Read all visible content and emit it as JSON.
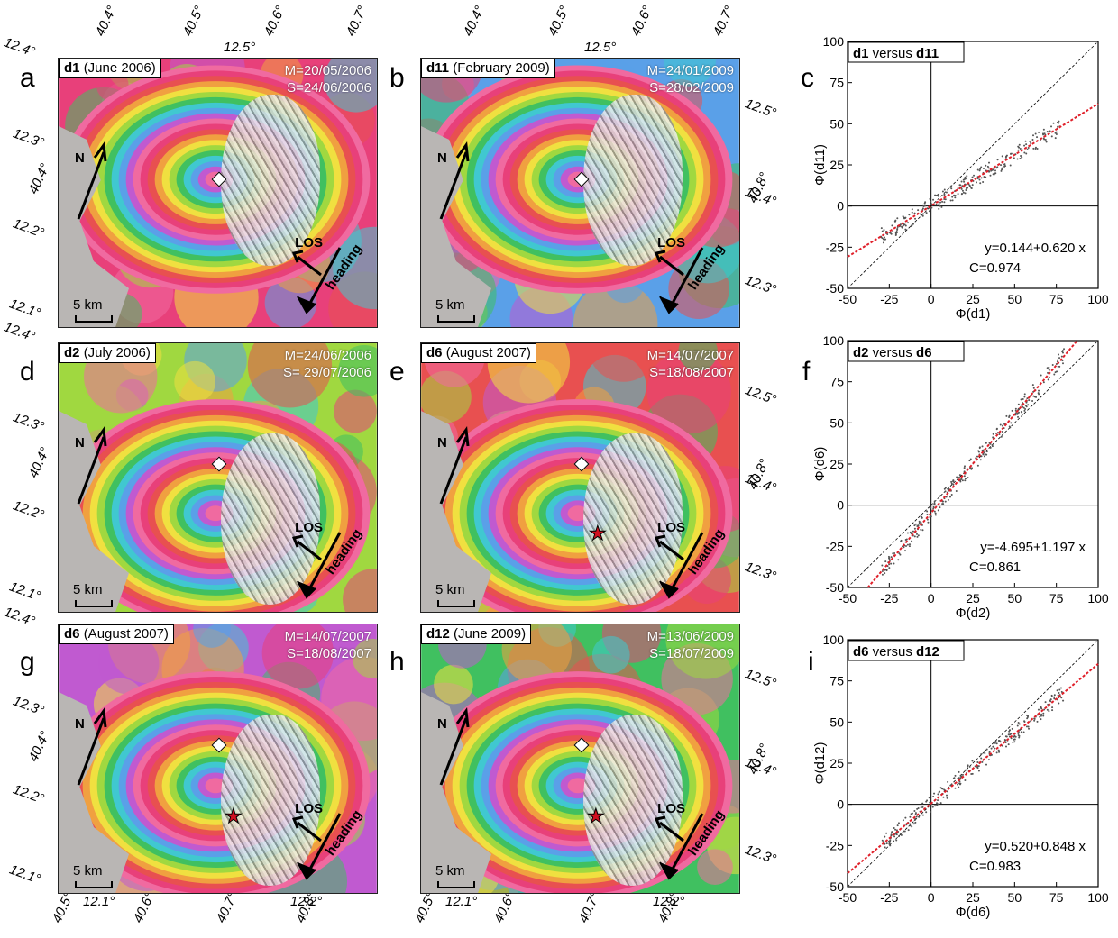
{
  "panels": [
    {
      "letter": "a",
      "id": "d1",
      "period": "(June 2006)",
      "master": "M=20/05/2006",
      "slave": "S=24/06/2006",
      "star": false
    },
    {
      "letter": "b",
      "id": "d11",
      "period": "(February 2009)",
      "master": "M=24/01/2009",
      "slave": "S=28/02/2009",
      "star": false
    },
    {
      "letter": "d",
      "id": "d2",
      "period": "(July 2006)",
      "master": "M=24/06/2006",
      "slave": "S= 29/07/2006",
      "star": false
    },
    {
      "letter": "e",
      "id": "d6",
      "period": "(August 2007)",
      "master": "M=14/07/2007",
      "slave": "S=18/08/2007",
      "star": true
    },
    {
      "letter": "g",
      "id": "d6",
      "period": "(August 2007)",
      "master": "M=14/07/2007",
      "slave": "S=18/08/2007",
      "star": true
    },
    {
      "letter": "h",
      "id": "d12",
      "period": "(June 2009)",
      "master": "M=13/06/2009",
      "slave": "S=18/07/2009",
      "star": true
    }
  ],
  "map_labels": {
    "north": "N",
    "los": "LOS",
    "heading": "heading",
    "scale": "5 km"
  },
  "map_ticks": {
    "top_lon": [
      "40.4°",
      "40.5°",
      "40.6°",
      "40.7°"
    ],
    "top_lat_mid": "12.5°",
    "left_lat": [
      "12.4°",
      "12.3°",
      "12.2°",
      "12.1°"
    ],
    "left_lon_mid": "40.4°",
    "right_lat": [
      "12.5°",
      "12.4°",
      "12.3°"
    ],
    "right_lon_mid": "40.8°",
    "bottom_lon": [
      "40.5°",
      "40.6°",
      "40.7°",
      "40.8°"
    ],
    "bottom_lat": [
      "12.1°",
      "12.2°"
    ]
  },
  "chart_data": [
    {
      "letter": "c",
      "type": "scatter",
      "title_a": "d1",
      "title_mid": " versus ",
      "title_b": "d11",
      "xlabel": "Φ(d1)",
      "ylabel": "Φ(d11)",
      "xlim": [
        -50,
        100
      ],
      "ylim": [
        -50,
        100
      ],
      "xticks": [
        -50,
        -25,
        0,
        25,
        50,
        75,
        100
      ],
      "yticks": [
        -50,
        -25,
        0,
        25,
        50,
        75,
        100
      ],
      "fit": {
        "intercept": 0.144,
        "slope": 0.62
      },
      "eq": "y=0.144+0.620 x",
      "corr": "C=0.974",
      "fit_color": "#e0202a"
    },
    {
      "letter": "f",
      "type": "scatter",
      "title_a": "d2",
      "title_mid": " versus ",
      "title_b": "d6",
      "xlabel": "Φ(d2)",
      "ylabel": "Φ(d6)",
      "xlim": [
        -50,
        100
      ],
      "ylim": [
        -50,
        100
      ],
      "xticks": [
        -50,
        -25,
        0,
        25,
        50,
        75,
        100
      ],
      "yticks": [
        -50,
        -25,
        0,
        25,
        50,
        75,
        100
      ],
      "fit": {
        "intercept": -4.695,
        "slope": 1.197
      },
      "eq": "y=-4.695+1.197 x",
      "corr": "C=0.861",
      "fit_color": "#e0202a"
    },
    {
      "letter": "i",
      "type": "scatter",
      "title_a": "d6",
      "title_mid": " versus ",
      "title_b": "d12",
      "xlabel": "Φ(d6)",
      "ylabel": "Φ(d12)",
      "xlim": [
        -50,
        100
      ],
      "ylim": [
        -50,
        100
      ],
      "xticks": [
        -50,
        -25,
        0,
        25,
        50,
        75,
        100
      ],
      "yticks": [
        -50,
        -25,
        0,
        25,
        50,
        75,
        100
      ],
      "fit": {
        "intercept": 0.52,
        "slope": 0.848
      },
      "eq": "y=0.520+0.848 x",
      "corr": "C=0.983",
      "fit_color": "#e0202a"
    }
  ]
}
